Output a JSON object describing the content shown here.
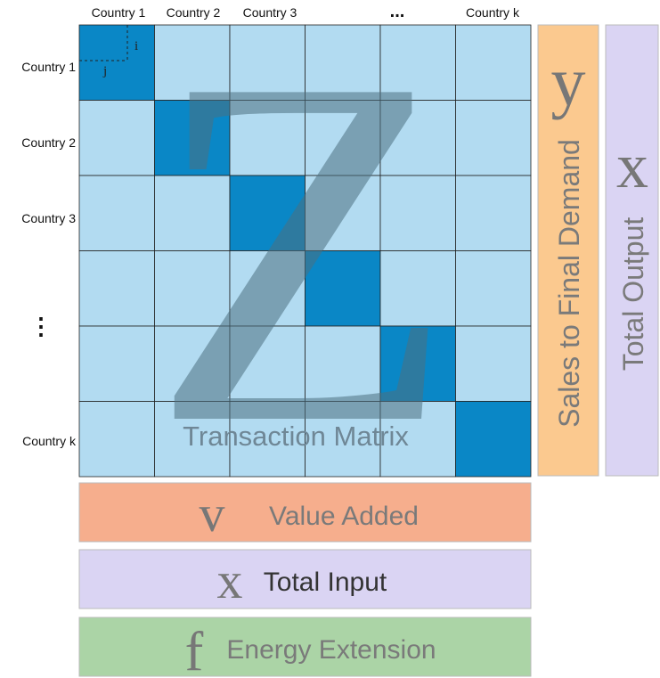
{
  "column_labels": [
    "Country 1",
    "Country 2",
    "Country 3",
    "...",
    "Country k"
  ],
  "row_labels": [
    "Country 1",
    "Country 2",
    "Country 3",
    "⋮",
    "Country k"
  ],
  "matrix": {
    "symbol": "Z",
    "label": "Transaction Matrix",
    "row_index": "i",
    "column_index": "j"
  },
  "final_demand": {
    "symbol": "y",
    "label": "Sales to Final Demand"
  },
  "total_output": {
    "symbol": "x",
    "label": "Total Output"
  },
  "value_added": {
    "symbol": "v",
    "label": "Value Added"
  },
  "total_input": {
    "symbol": "x",
    "label": "Total Input"
  },
  "energy_extension": {
    "symbol": "f",
    "label": "Energy Extension"
  }
}
